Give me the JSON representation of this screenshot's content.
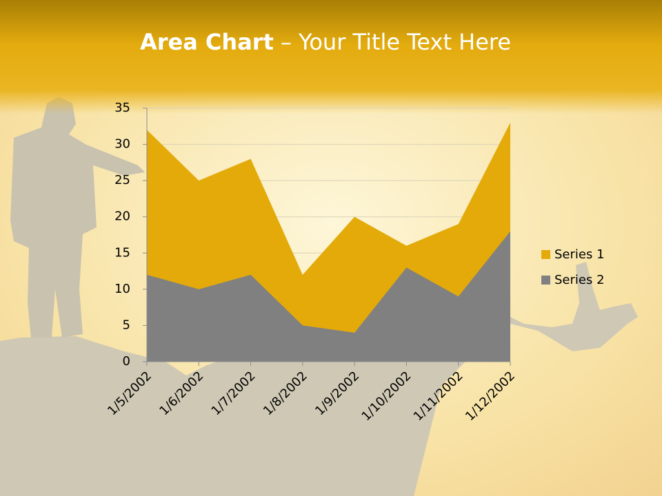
{
  "chart_data": {
    "type": "area",
    "title": {
      "bold": "Area Chart",
      "rest": "– Your Title Text Here"
    },
    "categories": [
      "1/5/2002",
      "1/6/2002",
      "1/7/2002",
      "1/8/2002",
      "1/9/2002",
      "1/10/2002",
      "1/11/2002",
      "1/12/2002"
    ],
    "series": [
      {
        "name": "Series 1",
        "color": "#e3aa0a",
        "values": [
          32,
          25,
          28,
          12,
          20,
          16,
          19,
          33
        ]
      },
      {
        "name": "Series 2",
        "color": "#808080",
        "values": [
          12,
          10,
          12,
          5,
          4,
          13,
          9,
          18
        ]
      }
    ],
    "ylim": [
      0,
      35
    ],
    "yticks": [
      0,
      5,
      10,
      15,
      20,
      25,
      30,
      35
    ],
    "grid": true,
    "legend": "right"
  }
}
